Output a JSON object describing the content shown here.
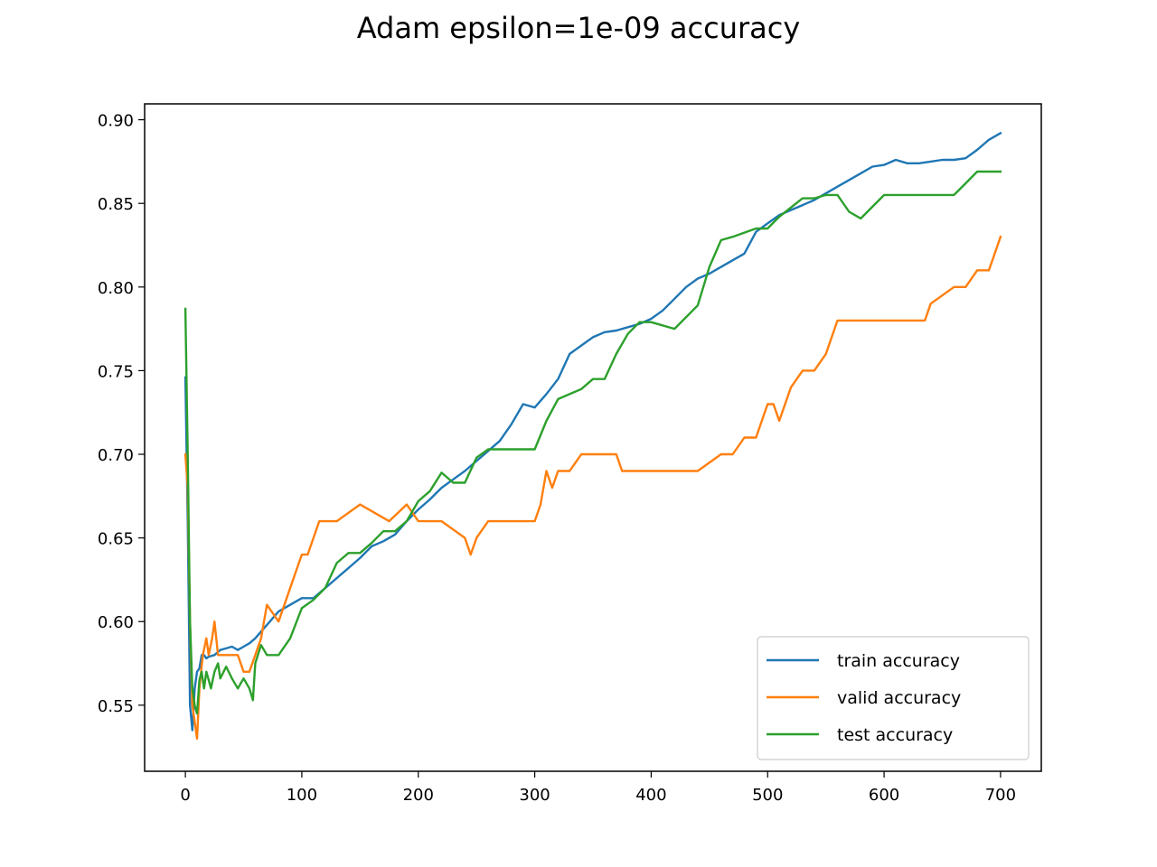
{
  "chart_data": {
    "type": "line",
    "title": "Adam epsilon=1e-09 accuracy",
    "xlabel": "",
    "ylabel": "",
    "xlim": [
      -35,
      735
    ],
    "ylim": [
      0.5105,
      0.9095
    ],
    "xticks": [
      0,
      100,
      200,
      300,
      400,
      500,
      600,
      700
    ],
    "xtick_labels": [
      "0",
      "100",
      "200",
      "300",
      "400",
      "500",
      "600",
      "700"
    ],
    "yticks": [
      0.55,
      0.6,
      0.65,
      0.7,
      0.75,
      0.8,
      0.85,
      0.9
    ],
    "ytick_labels": [
      "0.55",
      "0.60",
      "0.65",
      "0.70",
      "0.75",
      "0.80",
      "0.85",
      "0.90"
    ],
    "grid": false,
    "legend_position": "lower-right",
    "series": [
      {
        "name": "train accuracy",
        "color": "#1f77b4",
        "x": [
          0,
          2,
          4,
          6,
          8,
          10,
          12,
          14,
          16,
          18,
          20,
          25,
          30,
          35,
          40,
          45,
          50,
          55,
          60,
          65,
          70,
          80,
          90,
          100,
          110,
          120,
          130,
          140,
          150,
          160,
          170,
          180,
          190,
          200,
          210,
          220,
          230,
          240,
          250,
          260,
          270,
          280,
          290,
          300,
          310,
          320,
          330,
          340,
          350,
          360,
          370,
          380,
          390,
          400,
          410,
          420,
          430,
          440,
          450,
          460,
          470,
          480,
          490,
          500,
          510,
          520,
          530,
          540,
          550,
          560,
          570,
          580,
          590,
          600,
          610,
          620,
          630,
          640,
          650,
          660,
          670,
          680,
          690,
          700
        ],
        "values": [
          0.746,
          0.66,
          0.55,
          0.535,
          0.56,
          0.57,
          0.572,
          0.58,
          0.58,
          0.578,
          0.579,
          0.58,
          0.583,
          0.584,
          0.585,
          0.583,
          0.585,
          0.587,
          0.59,
          0.594,
          0.598,
          0.606,
          0.61,
          0.614,
          0.614,
          0.62,
          0.626,
          0.632,
          0.638,
          0.645,
          0.648,
          0.652,
          0.66,
          0.667,
          0.673,
          0.68,
          0.685,
          0.69,
          0.696,
          0.702,
          0.708,
          0.718,
          0.73,
          0.728,
          0.736,
          0.745,
          0.76,
          0.765,
          0.77,
          0.773,
          0.774,
          0.776,
          0.778,
          0.781,
          0.786,
          0.793,
          0.8,
          0.805,
          0.808,
          0.812,
          0.816,
          0.82,
          0.833,
          0.838,
          0.843,
          0.846,
          0.849,
          0.852,
          0.856,
          0.86,
          0.864,
          0.868,
          0.872,
          0.873,
          0.876,
          0.874,
          0.874,
          0.875,
          0.876,
          0.876,
          0.877,
          0.882,
          0.888,
          0.892
        ]
      },
      {
        "name": "valid accuracy",
        "color": "#ff7f0e",
        "x": [
          0,
          2,
          4,
          6,
          8,
          10,
          12,
          15,
          18,
          20,
          23,
          25,
          28,
          30,
          35,
          40,
          45,
          50,
          55,
          60,
          65,
          70,
          80,
          90,
          100,
          105,
          110,
          115,
          130,
          150,
          175,
          190,
          200,
          220,
          240,
          245,
          250,
          260,
          280,
          300,
          305,
          310,
          315,
          320,
          330,
          340,
          350,
          370,
          375,
          380,
          400,
          420,
          440,
          460,
          470,
          480,
          490,
          500,
          505,
          510,
          520,
          530,
          540,
          550,
          560,
          580,
          600,
          620,
          635,
          640,
          660,
          670,
          680,
          690,
          695,
          700
        ],
        "values": [
          0.7,
          0.68,
          0.6,
          0.55,
          0.54,
          0.53,
          0.56,
          0.58,
          0.59,
          0.58,
          0.59,
          0.6,
          0.58,
          0.58,
          0.58,
          0.58,
          0.58,
          0.57,
          0.57,
          0.58,
          0.59,
          0.61,
          0.6,
          0.62,
          0.64,
          0.64,
          0.65,
          0.66,
          0.66,
          0.67,
          0.66,
          0.67,
          0.66,
          0.66,
          0.65,
          0.64,
          0.65,
          0.66,
          0.66,
          0.66,
          0.67,
          0.69,
          0.68,
          0.69,
          0.69,
          0.7,
          0.7,
          0.7,
          0.69,
          0.69,
          0.69,
          0.69,
          0.69,
          0.7,
          0.7,
          0.71,
          0.71,
          0.73,
          0.73,
          0.72,
          0.74,
          0.75,
          0.75,
          0.76,
          0.78,
          0.78,
          0.78,
          0.78,
          0.78,
          0.79,
          0.8,
          0.8,
          0.81,
          0.81,
          0.82,
          0.83
        ]
      },
      {
        "name": "test accuracy",
        "color": "#2ca02c",
        "x": [
          0,
          2,
          4,
          6,
          8,
          10,
          12,
          14,
          16,
          18,
          20,
          22,
          25,
          28,
          30,
          35,
          40,
          45,
          50,
          55,
          58,
          60,
          65,
          70,
          80,
          90,
          100,
          110,
          120,
          130,
          140,
          150,
          160,
          170,
          180,
          190,
          200,
          210,
          220,
          230,
          240,
          250,
          260,
          280,
          300,
          310,
          320,
          340,
          350,
          360,
          370,
          380,
          390,
          400,
          420,
          440,
          450,
          460,
          470,
          490,
          500,
          510,
          530,
          540,
          550,
          560,
          570,
          580,
          590,
          600,
          620,
          640,
          660,
          670,
          680,
          690,
          700
        ],
        "values": [
          0.787,
          0.7,
          0.6,
          0.56,
          0.55,
          0.545,
          0.565,
          0.57,
          0.56,
          0.57,
          0.565,
          0.56,
          0.57,
          0.575,
          0.566,
          0.573,
          0.566,
          0.56,
          0.566,
          0.56,
          0.553,
          0.575,
          0.586,
          0.58,
          0.58,
          0.59,
          0.608,
          0.613,
          0.62,
          0.635,
          0.641,
          0.641,
          0.647,
          0.654,
          0.654,
          0.66,
          0.672,
          0.678,
          0.689,
          0.683,
          0.683,
          0.698,
          0.703,
          0.703,
          0.703,
          0.72,
          0.733,
          0.739,
          0.745,
          0.745,
          0.76,
          0.772,
          0.779,
          0.779,
          0.775,
          0.789,
          0.812,
          0.828,
          0.83,
          0.835,
          0.835,
          0.842,
          0.853,
          0.853,
          0.855,
          0.855,
          0.845,
          0.841,
          0.848,
          0.855,
          0.855,
          0.855,
          0.855,
          0.862,
          0.869,
          0.869,
          0.869
        ]
      }
    ]
  }
}
